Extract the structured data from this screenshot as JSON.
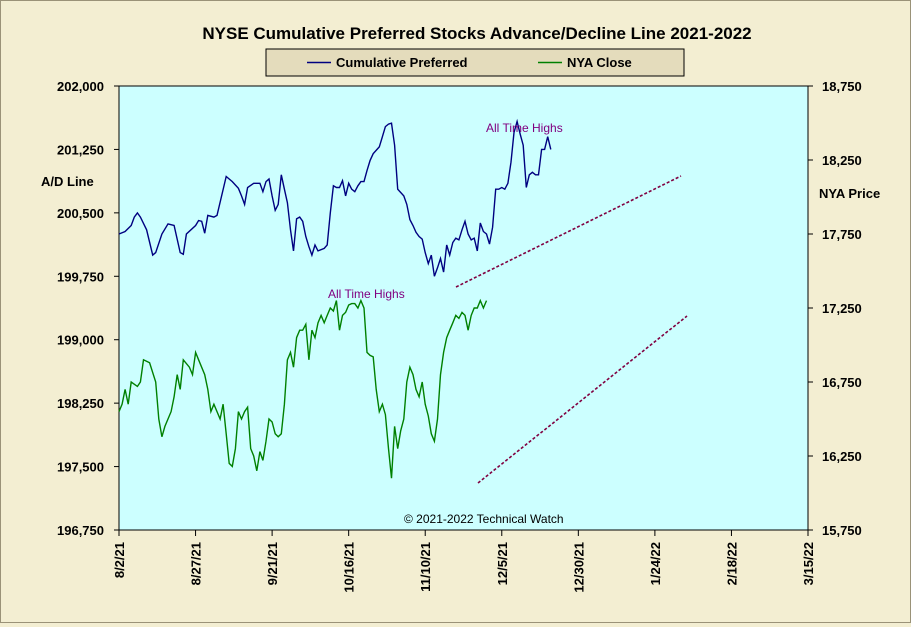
{
  "colors": {
    "background": "#f3eed2",
    "plot": "#ccffff",
    "ad_line": "#000080",
    "nya_line": "#008000",
    "trend": "#800040"
  },
  "chart_data": {
    "type": "line",
    "title": "NYSE Cumulative  Preferred Stocks Advance/Decline  Line 2021-2022",
    "ylabel": "A/D Line",
    "y2label": "NYA Price",
    "ylim": [
      196750,
      202000
    ],
    "y2lim": [
      15750,
      18750
    ],
    "yticks": [
      "196,750",
      "197,500",
      "198,250",
      "199,000",
      "199,750",
      "200,500",
      "201,250",
      "202,000"
    ],
    "y2ticks": [
      "15,750",
      "16,250",
      "16,750",
      "17,250",
      "17,750",
      "18,250",
      "18,750"
    ],
    "xticks": [
      "8/2/21",
      "8/27/21",
      "9/21/21",
      "10/16/21",
      "11/10/21",
      "12/5/21",
      "12/30/21",
      "1/24/22",
      "2/18/22",
      "3/15/22"
    ],
    "legend": [
      "Cumulative Preferred",
      "NYA Close"
    ],
    "annotations": [
      "All Time Highs",
      "All Time Highs"
    ],
    "copyright": "© 2021-2022  Technical  Watch",
    "series": [
      {
        "name": "Cumulative Preferred",
        "axis": "left",
        "values": [
          [
            0,
            200250
          ],
          [
            2,
            200280
          ],
          [
            4,
            200350
          ],
          [
            5,
            200450
          ],
          [
            6,
            200500
          ],
          [
            7,
            200450
          ],
          [
            9,
            200300
          ],
          [
            11,
            200000
          ],
          [
            12,
            200030
          ],
          [
            14,
            200250
          ],
          [
            16,
            200370
          ],
          [
            18,
            200350
          ],
          [
            20,
            200030
          ],
          [
            21,
            200010
          ],
          [
            22,
            200250
          ],
          [
            25,
            200350
          ],
          [
            26,
            200410
          ],
          [
            27,
            200400
          ],
          [
            28,
            200260
          ],
          [
            29,
            200470
          ],
          [
            31,
            200450
          ],
          [
            32,
            200470
          ],
          [
            35,
            200930
          ],
          [
            37,
            200870
          ],
          [
            39,
            200790
          ],
          [
            40,
            200700
          ],
          [
            41,
            200600
          ],
          [
            42,
            200800
          ],
          [
            44,
            200850
          ],
          [
            46,
            200850
          ],
          [
            47,
            200750
          ],
          [
            48,
            200870
          ],
          [
            49,
            200900
          ],
          [
            50,
            200700
          ],
          [
            51,
            200530
          ],
          [
            52,
            200600
          ],
          [
            53,
            200950
          ],
          [
            54,
            200780
          ],
          [
            55,
            200620
          ],
          [
            56,
            200300
          ],
          [
            57,
            200050
          ],
          [
            58,
            200430
          ],
          [
            59,
            200450
          ],
          [
            60,
            200400
          ],
          [
            61,
            200220
          ],
          [
            62,
            200100
          ],
          [
            63,
            200000
          ],
          [
            64,
            200120
          ],
          [
            65,
            200050
          ],
          [
            67,
            200080
          ],
          [
            68,
            200120
          ],
          [
            69,
            200500
          ],
          [
            70,
            200820
          ],
          [
            71,
            200800
          ],
          [
            72,
            200800
          ],
          [
            73,
            200880
          ],
          [
            74,
            200700
          ],
          [
            75,
            200850
          ],
          [
            76,
            200780
          ],
          [
            77,
            200750
          ],
          [
            78,
            200820
          ],
          [
            79,
            200870
          ],
          [
            80,
            200870
          ],
          [
            81,
            201000
          ],
          [
            82,
            201120
          ],
          [
            83,
            201200
          ],
          [
            85,
            201280
          ],
          [
            86,
            201400
          ],
          [
            87,
            201520
          ],
          [
            88,
            201550
          ],
          [
            89,
            201560
          ],
          [
            90,
            201300
          ],
          [
            91,
            200780
          ],
          [
            93,
            200700
          ],
          [
            94,
            200600
          ],
          [
            95,
            200420
          ],
          [
            96,
            200350
          ],
          [
            97,
            200270
          ],
          [
            98,
            200220
          ],
          [
            99,
            200190
          ],
          [
            100,
            200030
          ],
          [
            101,
            199900
          ],
          [
            102,
            200000
          ],
          [
            103,
            199750
          ],
          [
            104,
            199850
          ],
          [
            105,
            199960
          ],
          [
            106,
            199800
          ],
          [
            107,
            200120
          ],
          [
            108,
            200000
          ],
          [
            109,
            200150
          ],
          [
            110,
            200200
          ],
          [
            111,
            200180
          ],
          [
            112,
            200300
          ],
          [
            113,
            200400
          ],
          [
            114,
            200250
          ],
          [
            115,
            200180
          ],
          [
            116,
            200200
          ],
          [
            117,
            200050
          ],
          [
            118,
            200380
          ],
          [
            119,
            200280
          ],
          [
            120,
            200250
          ],
          [
            121,
            200130
          ],
          [
            122,
            200330
          ],
          [
            123,
            200780
          ],
          [
            124,
            200780
          ],
          [
            125,
            200800
          ],
          [
            126,
            200780
          ],
          [
            127,
            200850
          ],
          [
            128,
            201100
          ],
          [
            129,
            201450
          ],
          [
            130,
            201580
          ],
          [
            131,
            201430
          ],
          [
            132,
            201300
          ],
          [
            133,
            200800
          ],
          [
            134,
            200950
          ],
          [
            135,
            200980
          ],
          [
            136,
            200950
          ],
          [
            137,
            200950
          ],
          [
            138,
            201250
          ],
          [
            139,
            201250
          ],
          [
            140,
            201400
          ],
          [
            141,
            201250
          ]
        ]
      },
      {
        "name": "NYA Close",
        "axis": "right",
        "values": [
          [
            0,
            16550
          ],
          [
            1,
            16600
          ],
          [
            2,
            16700
          ],
          [
            3,
            16600
          ],
          [
            4,
            16750
          ],
          [
            6,
            16720
          ],
          [
            7,
            16750
          ],
          [
            8,
            16900
          ],
          [
            10,
            16880
          ],
          [
            12,
            16750
          ],
          [
            13,
            16500
          ],
          [
            14,
            16380
          ],
          [
            15,
            16450
          ],
          [
            17,
            16550
          ],
          [
            18,
            16650
          ],
          [
            19,
            16800
          ],
          [
            20,
            16700
          ],
          [
            21,
            16900
          ],
          [
            23,
            16850
          ],
          [
            24,
            16800
          ],
          [
            25,
            16950
          ],
          [
            26,
            16900
          ],
          [
            28,
            16800
          ],
          [
            29,
            16700
          ],
          [
            30,
            16550
          ],
          [
            31,
            16600
          ],
          [
            32,
            16550
          ],
          [
            33,
            16500
          ],
          [
            34,
            16600
          ],
          [
            35,
            16400
          ],
          [
            36,
            16200
          ],
          [
            37,
            16180
          ],
          [
            38,
            16300
          ],
          [
            39,
            16550
          ],
          [
            40,
            16500
          ],
          [
            41,
            16550
          ],
          [
            42,
            16580
          ],
          [
            43,
            16300
          ],
          [
            44,
            16250
          ],
          [
            45,
            16150
          ],
          [
            46,
            16280
          ],
          [
            47,
            16220
          ],
          [
            48,
            16350
          ],
          [
            49,
            16500
          ],
          [
            50,
            16480
          ],
          [
            51,
            16400
          ],
          [
            52,
            16380
          ],
          [
            53,
            16400
          ],
          [
            54,
            16600
          ],
          [
            55,
            16900
          ],
          [
            56,
            16950
          ],
          [
            57,
            16850
          ],
          [
            58,
            17050
          ],
          [
            59,
            17100
          ],
          [
            60,
            17100
          ],
          [
            61,
            17140
          ],
          [
            62,
            16900
          ],
          [
            63,
            17100
          ],
          [
            64,
            17050
          ],
          [
            65,
            17150
          ],
          [
            66,
            17200
          ],
          [
            67,
            17150
          ],
          [
            68,
            17200
          ],
          [
            69,
            17250
          ],
          [
            70,
            17230
          ],
          [
            71,
            17300
          ],
          [
            72,
            17100
          ],
          [
            73,
            17200
          ],
          [
            74,
            17220
          ],
          [
            75,
            17270
          ],
          [
            76,
            17280
          ],
          [
            77,
            17280
          ],
          [
            78,
            17250
          ],
          [
            79,
            17300
          ],
          [
            80,
            17250
          ],
          [
            81,
            16950
          ],
          [
            82,
            16930
          ],
          [
            83,
            16920
          ],
          [
            84,
            16700
          ],
          [
            85,
            16550
          ],
          [
            86,
            16600
          ],
          [
            87,
            16530
          ],
          [
            88,
            16300
          ],
          [
            89,
            16100
          ],
          [
            90,
            16450
          ],
          [
            91,
            16300
          ],
          [
            92,
            16420
          ],
          [
            93,
            16500
          ],
          [
            94,
            16750
          ],
          [
            95,
            16850
          ],
          [
            96,
            16800
          ],
          [
            97,
            16700
          ],
          [
            98,
            16650
          ],
          [
            99,
            16750
          ],
          [
            100,
            16600
          ],
          [
            101,
            16520
          ],
          [
            102,
            16400
          ],
          [
            103,
            16350
          ],
          [
            104,
            16500
          ],
          [
            105,
            16800
          ],
          [
            106,
            16950
          ],
          [
            107,
            17050
          ],
          [
            108,
            17100
          ],
          [
            109,
            17150
          ],
          [
            110,
            17200
          ],
          [
            111,
            17180
          ],
          [
            112,
            17220
          ],
          [
            113,
            17200
          ],
          [
            114,
            17100
          ],
          [
            115,
            17200
          ],
          [
            116,
            17250
          ],
          [
            117,
            17250
          ],
          [
            118,
            17300
          ],
          [
            119,
            17250
          ],
          [
            120,
            17300
          ]
        ]
      }
    ]
  }
}
